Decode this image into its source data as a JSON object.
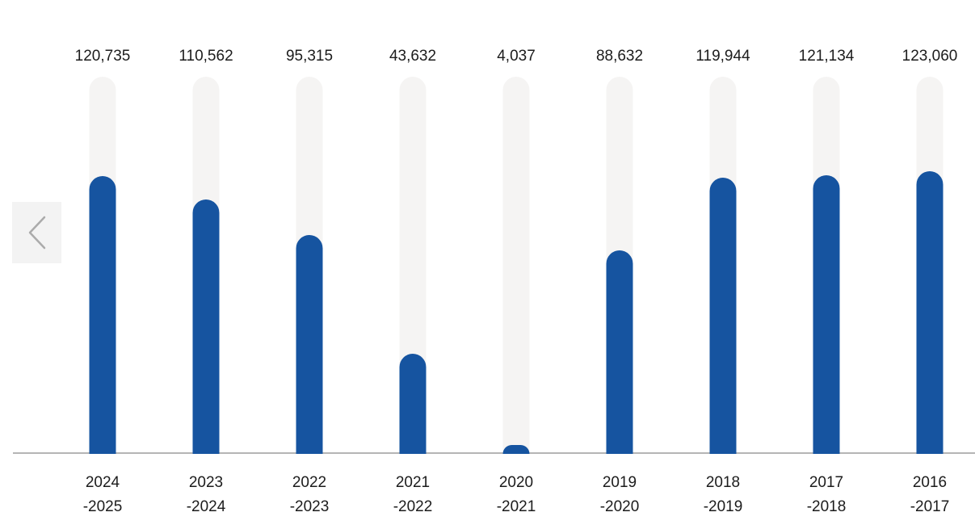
{
  "chart_data": {
    "type": "bar",
    "title": "",
    "xlabel": "",
    "ylabel": "",
    "categories": [
      "2024-2025",
      "2023-2024",
      "2022-2023",
      "2021-2022",
      "2020-2021",
      "2019-2020",
      "2018-2019",
      "2017-2018",
      "2016-2017"
    ],
    "category_lines": [
      [
        "2024",
        "-2025"
      ],
      [
        "2023",
        "-2024"
      ],
      [
        "2022",
        "-2023"
      ],
      [
        "2021",
        "-2022"
      ],
      [
        "2020",
        "-2021"
      ],
      [
        "2019",
        "-2020"
      ],
      [
        "2018",
        "-2019"
      ],
      [
        "2017",
        "-2018"
      ],
      [
        "2016",
        "-2017"
      ]
    ],
    "values": [
      120735,
      110562,
      95315,
      43632,
      4037,
      88632,
      119944,
      121134,
      123060
    ],
    "value_labels": [
      "120,735",
      "110,562",
      "95,315",
      "43,632",
      "4,037",
      "88,632",
      "119,944",
      "121,134",
      "123,060"
    ],
    "ylim": [
      0,
      164000
    ],
    "grid": false,
    "legend": false,
    "layout": "vertical rounded bars on light tracks, value labels above, baseline axis, two-line year labels below",
    "colors": {
      "bar": "#1654a0",
      "track": "#f5f4f3",
      "axis_line": "#b5b5b5",
      "label_text": "#1c1c1c",
      "nav_button_bg": "#f3f3f3",
      "nav_chevron": "#ababab"
    }
  },
  "nav": {
    "prev_button": {
      "icon": "chevron-left",
      "label": ""
    }
  }
}
